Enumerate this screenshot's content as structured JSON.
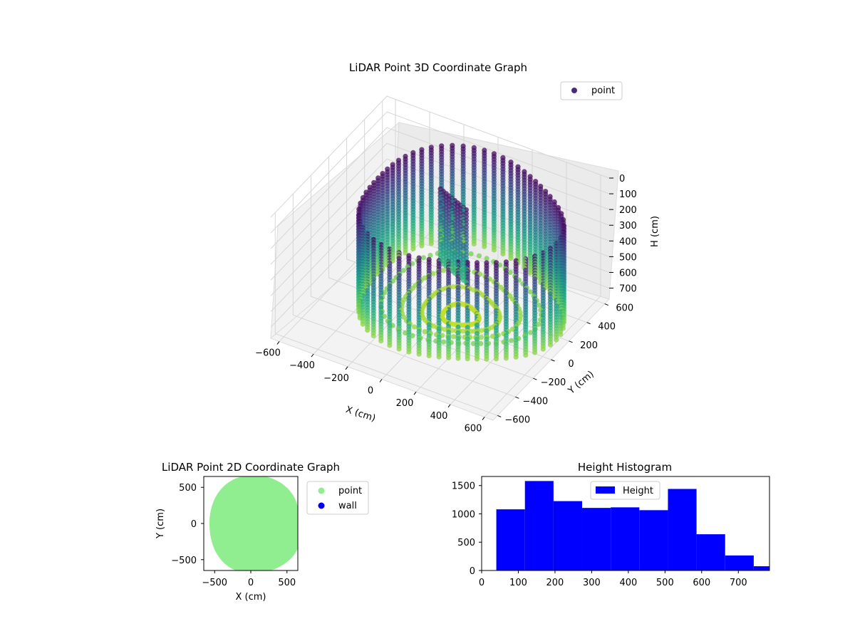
{
  "chart_data": [
    {
      "type": "scatter",
      "projection": "3d",
      "title": "LiDAR Point 3D Coordinate Graph",
      "xlabel": "X (cm)",
      "ylabel": "Y (cm)",
      "zlabel": "H (cm)",
      "x_ticks": [
        "−600",
        "−400",
        "−200",
        "0",
        "200",
        "400",
        "600"
      ],
      "y_ticks": [
        "−600",
        "−400",
        "−200",
        "0",
        "200",
        "400",
        "600"
      ],
      "z_ticks": [
        "0",
        "100",
        "200",
        "300",
        "400",
        "500",
        "600",
        "700"
      ],
      "xlim": [
        -650,
        650
      ],
      "ylim": [
        -650,
        650
      ],
      "zlim": [
        0,
        770
      ],
      "z_inverted": true,
      "colormap": "viridis",
      "series": [
        {
          "name": "point",
          "color": "#472c7a"
        }
      ],
      "legend": "top-right",
      "grid": true
    },
    {
      "type": "scatter",
      "title": "LiDAR Point 2D Coordinate Graph",
      "xlabel": "X (cm)",
      "ylabel": "Y (cm)",
      "x_ticks": [
        "−500",
        "0",
        "500"
      ],
      "y_ticks": [
        "500",
        "0",
        "−500"
      ],
      "xlim": [
        -650,
        650
      ],
      "ylim": [
        -650,
        650
      ],
      "series": [
        {
          "name": "point",
          "color": "#90ee90"
        },
        {
          "name": "wall",
          "color": "#0000ff"
        }
      ],
      "legend": "outside-right"
    },
    {
      "type": "bar",
      "title": "Height Histogram",
      "xlabel": "",
      "ylabel": "",
      "x_ticks": [
        "0",
        "100",
        "200",
        "300",
        "400",
        "500",
        "600",
        "700"
      ],
      "y_ticks": [
        "0",
        "500",
        "1000",
        "1500"
      ],
      "xlim": [
        0,
        785
      ],
      "ylim": [
        0,
        1660
      ],
      "bin_edges": [
        40,
        118,
        196,
        274,
        352,
        430,
        508,
        586,
        664,
        742,
        820
      ],
      "series": [
        {
          "name": "Height",
          "color": "#0000ff",
          "values": [
            1080,
            1580,
            1225,
            1105,
            1115,
            1065,
            1440,
            640,
            265,
            75
          ]
        }
      ],
      "legend": "upper-center"
    }
  ]
}
